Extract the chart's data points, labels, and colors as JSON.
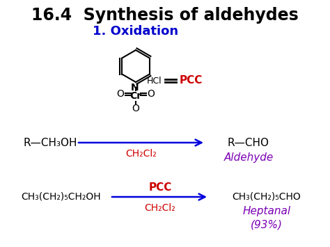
{
  "title": "16.4  Synthesis of aldehydes",
  "subtitle": "1. Oxidation",
  "title_color": "#000000",
  "subtitle_color": "#0000cc",
  "background_color": "#ffffff",
  "reaction1_left": "R—CH₃OH",
  "reaction1_right": "R—CHO",
  "reaction1_below": "CH₂Cl₂",
  "reaction1_product_label": "Aldehyde",
  "reaction2_left": "CH₃(CH₂)₅CH₂OH",
  "reaction2_right": "CH₃(CH₂)₅CHO",
  "reaction2_above": "PCC",
  "reaction2_below": "CH₂Cl₂",
  "reaction2_product_label": "Heptanal\n(93%)",
  "arrow_color": "#0000dd",
  "pcc_color": "#cc0000",
  "ch2cl2_color": "#cc0000",
  "aldehyde_label_color": "#7b00b4",
  "heptanal_label_color": "#7b00b4",
  "structure_color": "#000000"
}
